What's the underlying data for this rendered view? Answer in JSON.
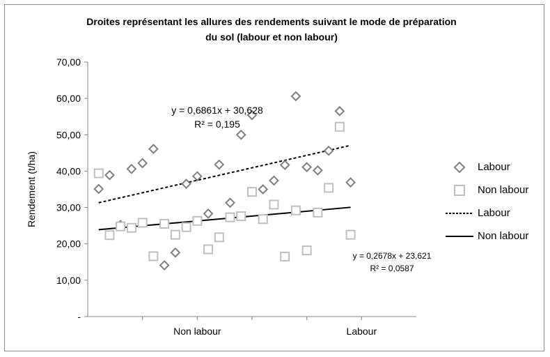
{
  "chart_data": {
    "type": "scatter",
    "title_line1": "Droites représentant les allures des rendements suivant  le mode de préparation",
    "title_line2": "du sol (labour et non labour)",
    "ylabel": "Rendement (t/ha)",
    "xlabel": "",
    "ylim": [
      0,
      70
    ],
    "xlim": [
      0,
      30
    ],
    "yticks": [
      {
        "v": 0,
        "label": "-"
      },
      {
        "v": 10,
        "label": "10,00"
      },
      {
        "v": 20,
        "label": "20,00"
      },
      {
        "v": 30,
        "label": "30,00"
      },
      {
        "v": 40,
        "label": "40,00"
      },
      {
        "v": 50,
        "label": "50,00"
      },
      {
        "v": 60,
        "label": "60,00"
      },
      {
        "v": 70,
        "label": "70,00"
      }
    ],
    "xticks": [
      5,
      10,
      15,
      20,
      25
    ],
    "xcategory_labels": [
      {
        "x": 10,
        "label": "Non labour"
      },
      {
        "x": 25,
        "label": "Labour"
      }
    ],
    "grid": false,
    "legend_position": "right",
    "series": [
      {
        "name": "Labour",
        "kind": "points",
        "marker": "diamond",
        "color": "#7f7f7f",
        "x": [
          1,
          2,
          3,
          4,
          5,
          6,
          7,
          8,
          9,
          10,
          11,
          12,
          13,
          14,
          15,
          16,
          17,
          18,
          19,
          20,
          21,
          22,
          23,
          24
        ],
        "y": [
          35.1,
          38.9,
          25.2,
          40.6,
          42.2,
          46.1,
          14.1,
          17.6,
          36.5,
          38.6,
          28.3,
          41.8,
          31.3,
          50.0,
          55.4,
          35.0,
          37.4,
          41.7,
          60.6,
          41.1,
          40.2,
          45.6,
          56.5,
          36.9
        ]
      },
      {
        "name": "Non labour",
        "kind": "points",
        "marker": "square",
        "color": "#bfbfbf",
        "x": [
          1,
          2,
          3,
          4,
          5,
          6,
          7,
          8,
          9,
          10,
          11,
          12,
          13,
          14,
          15,
          16,
          17,
          18,
          19,
          20,
          21,
          22,
          23,
          24
        ],
        "y": [
          39.4,
          22.4,
          24.8,
          24.4,
          25.8,
          16.6,
          25.5,
          22.5,
          24.6,
          26.3,
          18.5,
          21.8,
          27.3,
          27.6,
          34.3,
          26.8,
          30.8,
          16.5,
          29.2,
          18.2,
          28.6,
          35.4,
          52.2,
          22.5
        ]
      },
      {
        "name": "Labour",
        "kind": "trendline",
        "style": "dashed",
        "color": "#000000",
        "x": [
          1,
          24
        ],
        "y": [
          31.31,
          47.09
        ]
      },
      {
        "name": "Non labour",
        "kind": "trendline",
        "style": "solid",
        "color": "#000000",
        "x": [
          1,
          24
        ],
        "y": [
          23.89,
          30.05
        ]
      }
    ],
    "annotations": {
      "labour_eq": "y = 0,6861x + 30,628",
      "labour_r2": "R² = 0,195",
      "nonlabour_eq": "y = 0,2678x + 23,621",
      "nonlabour_r2": "R² = 0,0587"
    }
  }
}
